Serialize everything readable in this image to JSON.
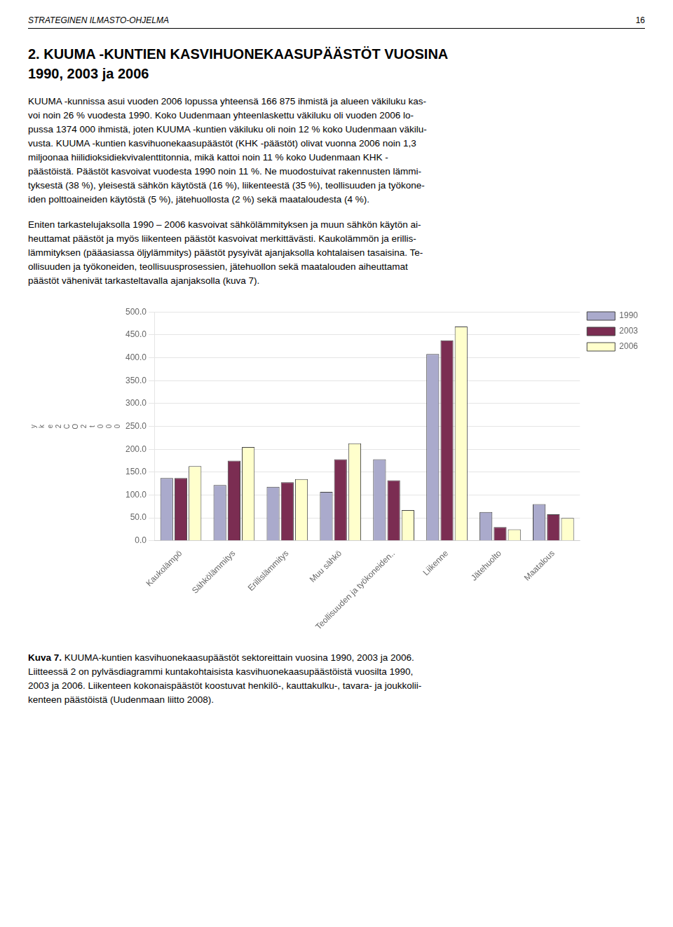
{
  "header_text": "STRATEGINEN ILMASTO-OHJELMA",
  "page_number": "16",
  "title": [
    "2. KUUMA -KUNTIEN KASVIHUONEKAASUPÄÄSTÖT VUOSINA",
    "1990, 2003 ja 2006"
  ],
  "body": [
    [
      "KUUMA -kunnissa asui vuoden 2006 lopussa yhteensä 166 875 ihmistä ja alueen väkiluku kas-",
      "voi noin 26 % vuodesta 1990. Koko Uudenmaan yhteenlaskettu väkiluku oli vuoden 2006 lo-",
      "pussa 1374 000 ihmistä, joten KUUMA -kuntien väkiluku oli noin 12 % koko Uudenmaan väkilu-",
      "vusta. KUUMA -kuntien kasvihuonekaasupäästöt (KHK -päästöt) olivat vuonna 2006 noin 1,3",
      "miljoonaa hiilidioksidiekvivalenttitonnia, mikä kattoi noin 11 % koko Uudenmaan KHK -",
      "päästöistä. Päästöt kasvoivat vuodesta 1990 noin 11 %. Ne muodostuivat rakennusten lämmi-",
      "tyksestä (38 %), yleisestä sähkön käytöstä (16 %), liikenteestä (35 %), teollisuuden ja työkone-",
      "iden polttoaineiden käytöstä (5 %), jätehuollosta (2 %) sekä maataloudesta (4 %)."
    ],
    [
      "Eniten tarkastelujaksolla 1990 – 2006 kasvoivat sähkölämmityksen ja muun sähkön käytön ai-",
      "heuttamat päästöt ja myös liikenteen päästöt kasvoivat merkittävästi. Kaukolämmön ja erillis-",
      "lämmityksen (pääasiassa öljylämmitys) päästöt pysyivät ajanjaksolla kohtalaisen tasaisina. Te-",
      "ollisuuden ja työkoneiden, teollisuusprosessien, jätehuollon sekä maatalouden aiheuttamat",
      "päästöt vähenivät tarkasteltavalla ajanjaksolla (kuva 7)."
    ]
  ],
  "caption_bold": "Kuva 7.",
  "caption_lines": [
    " KUUMA-kuntien kasvihuonekaasupäästöt sektoreittain vuosina 1990, 2003 ja 2006.",
    "Liitteessä 2 on pylväsdiagrammi kuntakohtaisista kasvihuonekaasupäästöistä vuosilta 1990,",
    "2003 ja 2006. Liikenteen kokonaispäästöt koostuvat henkilö-, kauttakulku-, tavara- ja joukkolii-",
    "kenteen päästöistä (Uudenmaan liitto 2008)."
  ],
  "chart_data": {
    "type": "bar",
    "categories": [
      "Kaukolämpö",
      "Sähkölämmitys",
      "Erillislämmitys",
      "Muu sähkö",
      "Teollisuuden ja työkoneiden..",
      "Liikenne",
      "Jätehuolto",
      "Maatalous"
    ],
    "series": [
      {
        "name": "1990",
        "color": "#AAAACC",
        "values": [
          137,
          122,
          118,
          107,
          178,
          408,
          63,
          80
        ]
      },
      {
        "name": "2003",
        "color": "#7B2D52",
        "values": [
          137,
          175,
          128,
          178,
          132,
          438,
          30,
          58
        ]
      },
      {
        "name": "2006",
        "color": "#FFFFCC",
        "values": [
          163,
          205,
          135,
          213,
          67,
          468,
          25,
          50
        ]
      }
    ],
    "ylabel": [
      "y",
      "k",
      "e",
      "2",
      "C",
      "O",
      "2",
      "t",
      "0",
      "0",
      "0"
    ],
    "ylim": [
      0,
      500
    ],
    "yticks": [
      {
        "value": 0,
        "label": "0.0"
      },
      {
        "value": 50,
        "label": "50.0"
      },
      {
        "value": 100,
        "label": "100.0"
      },
      {
        "value": 150,
        "label": "150.0"
      },
      {
        "value": 200,
        "label": "200.0"
      },
      {
        "value": 250,
        "label": "250.0"
      },
      {
        "value": 300,
        "label": "300.0"
      },
      {
        "value": 350,
        "label": "350.0"
      },
      {
        "value": 400,
        "label": "400.0"
      },
      {
        "value": 450,
        "label": "450.0"
      },
      {
        "value": 500,
        "label": "500.0"
      }
    ],
    "grid": true,
    "legend": "right"
  }
}
